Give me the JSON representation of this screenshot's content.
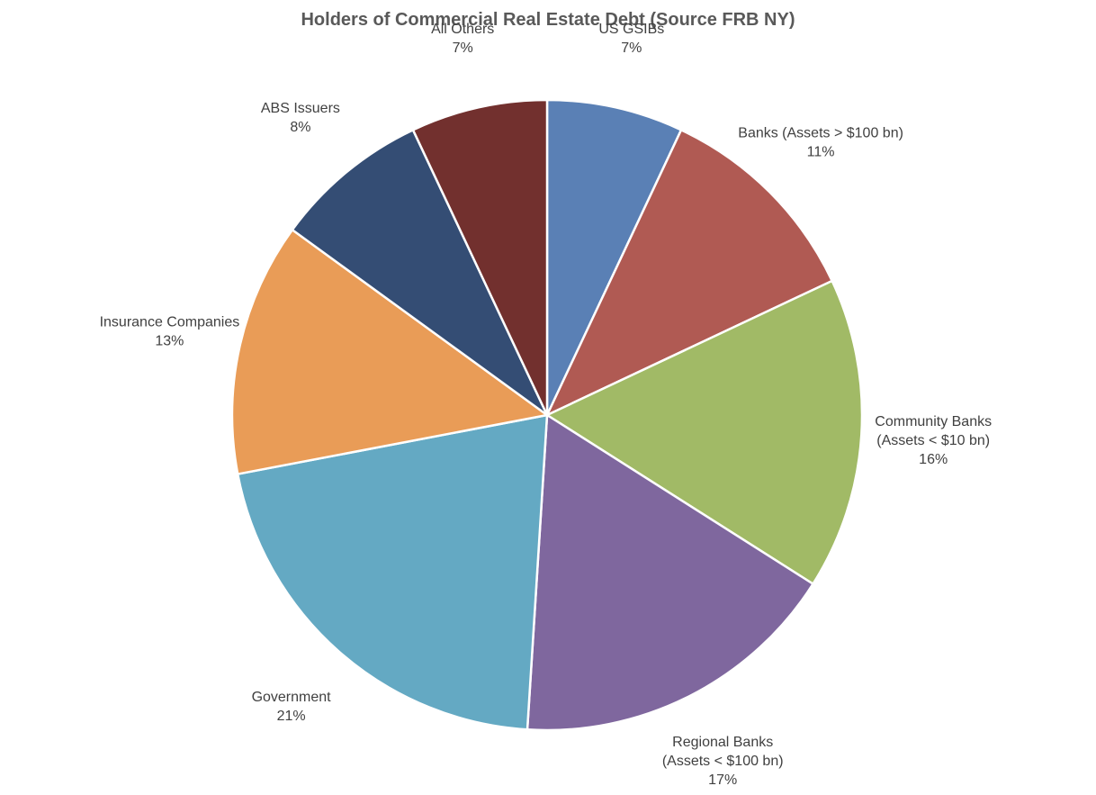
{
  "chart_data": {
    "type": "pie",
    "title": "Holders of Commercial Real Estate Debt (Source FRB NY)",
    "start_angle_deg": 0,
    "direction": "clockwise",
    "slices": [
      {
        "name": "US GSIBs",
        "label_lines": [
          "US GSIBs"
        ],
        "value": 7,
        "value_label": "7%",
        "color": "#5A80B5"
      },
      {
        "name": "Banks (Assets > $100 bn)",
        "label_lines": [
          "Banks (Assets > $100 bn)"
        ],
        "value": 11,
        "value_label": "11%",
        "color": "#B05A53"
      },
      {
        "name": "Community Banks (Assets < $10 bn)",
        "label_lines": [
          "Community Banks",
          "(Assets < $10 bn)"
        ],
        "value": 16,
        "value_label": "16%",
        "color": "#A1BA66"
      },
      {
        "name": "Regional Banks (Assets < $100 bn)",
        "label_lines": [
          "Regional Banks",
          "(Assets < $100 bn)"
        ],
        "value": 17,
        "value_label": "17%",
        "color": "#7F679E"
      },
      {
        "name": "Government",
        "label_lines": [
          "Government"
        ],
        "value": 21,
        "value_label": "21%",
        "color": "#64A9C3"
      },
      {
        "name": "Insurance Companies",
        "label_lines": [
          "Insurance Companies"
        ],
        "value": 13,
        "value_label": "13%",
        "color": "#E99C57"
      },
      {
        "name": "ABS Issuers",
        "label_lines": [
          "ABS Issuers"
        ],
        "value": 8,
        "value_label": "8%",
        "color": "#344D74"
      },
      {
        "name": "All Others",
        "label_lines": [
          "All Others"
        ],
        "value": 7,
        "value_label": "7%",
        "color": "#72302E"
      }
    ]
  }
}
